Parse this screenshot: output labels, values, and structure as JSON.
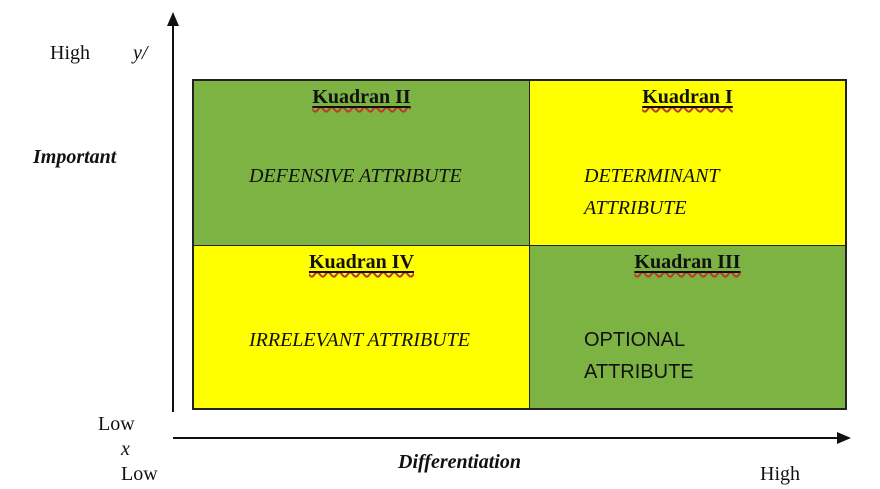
{
  "axes": {
    "y_high": "High",
    "y_symbol": "y/",
    "y_title": "Important",
    "y_low": "Low",
    "x_symbol": "x",
    "x_low": "Low",
    "x_title": "Differentiation",
    "x_high": "High"
  },
  "quadrants": [
    {
      "title": "Kuadran II",
      "body_lines": [
        "DEFENSIVE ATTRIBUTE"
      ],
      "color": "#7cb342",
      "body_italic": true
    },
    {
      "title": "Kuadran I",
      "body_lines": [
        "DETERMINANT",
        "ATTRIBUTE"
      ],
      "color": "#ffff00",
      "body_italic": true
    },
    {
      "title": "Kuadran IV",
      "body_lines": [
        "IRRELEVANT ATTRIBUTE"
      ],
      "color": "#ffff00",
      "body_italic": true
    },
    {
      "title": "Kuadran III",
      "body_lines": [
        "OPTIONAL",
        "ATTRIBUTE"
      ],
      "color": "#7cb342",
      "body_italic": false
    }
  ]
}
